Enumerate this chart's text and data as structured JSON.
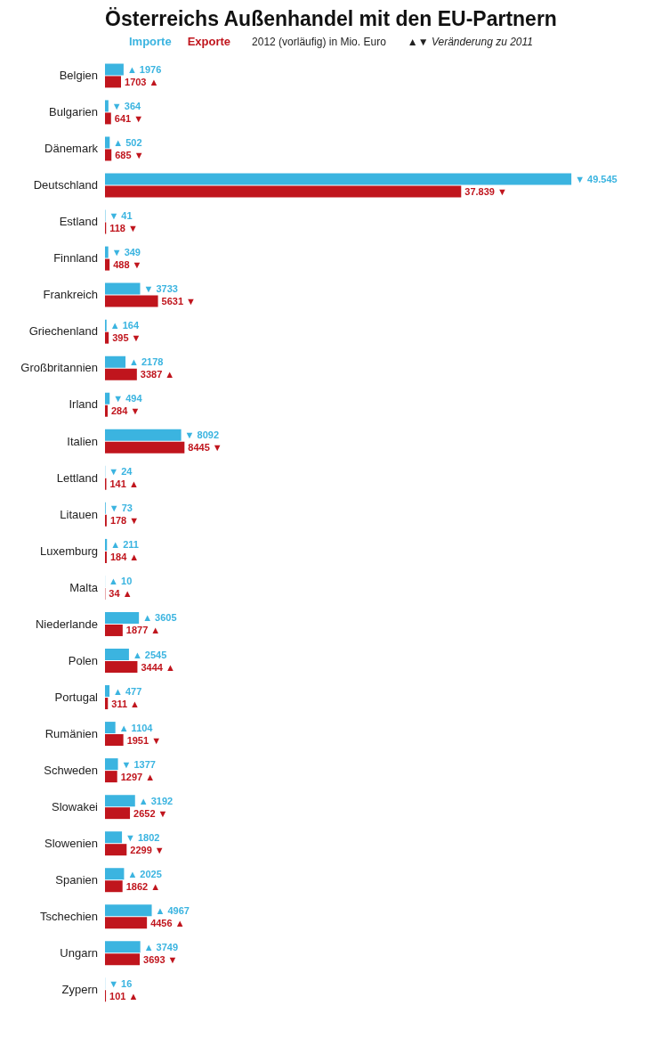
{
  "chart_data": {
    "type": "bar",
    "orientation": "horizontal",
    "title": "Österreichs Außenhandel mit den EU-Partnern",
    "subtitle": "2012 (vorläufig) in Mio. Euro",
    "annotations": [
      "▲▼ Veränderung zu 2011"
    ],
    "legend": "top",
    "categories": [
      "Belgien",
      "Bulgarien",
      "Dänemark",
      "Deutschland",
      "Estland",
      "Finnland",
      "Frankreich",
      "Griechenland",
      "Großbritannien",
      "Irland",
      "Italien",
      "Lettland",
      "Litauen",
      "Luxemburg",
      "Malta",
      "Niederlande",
      "Polen",
      "Portugal",
      "Rumänien",
      "Schweden",
      "Slowakei",
      "Slowenien",
      "Spanien",
      "Tschechien",
      "Ungarn",
      "Zypern"
    ],
    "series": [
      {
        "name": "Importe",
        "color": "#3bb4e0",
        "values": [
          1976,
          364,
          502,
          49545,
          41,
          349,
          3733,
          164,
          2178,
          494,
          8092,
          24,
          73,
          211,
          10,
          3605,
          2545,
          477,
          1104,
          1377,
          3192,
          1802,
          2025,
          4967,
          3749,
          16
        ],
        "value_labels": [
          "▲ 1976",
          "▼ 364",
          "▲ 502",
          "▼ 49.545",
          "▼ 41",
          "▼ 349",
          "▼ 3733",
          "▲ 164",
          "▲ 2178",
          "▼ 494",
          "▼ 8092",
          "▼ 24",
          "▼ 73",
          "▲ 211",
          "▲ 10",
          "▲ 3605",
          "▲ 2545",
          "▲ 477",
          "▲ 1104",
          "▼ 1377",
          "▲ 3192",
          "▼ 1802",
          "▲ 2025",
          "▲ 4967",
          "▲ 3749",
          "▼ 16"
        ]
      },
      {
        "name": "Exporte",
        "color": "#c0151d",
        "values": [
          1703,
          641,
          685,
          37839,
          118,
          488,
          5631,
          395,
          3387,
          284,
          8445,
          141,
          178,
          184,
          34,
          1877,
          3444,
          311,
          1951,
          1297,
          2652,
          2299,
          1862,
          4456,
          3693,
          101
        ],
        "value_labels": [
          "1703 ▲",
          "641 ▼",
          "685 ▼",
          "37.839 ▼",
          "118 ▼",
          "488 ▼",
          "5631 ▼",
          "395 ▼",
          "3387 ▲",
          "284 ▼",
          "8445 ▼",
          "141 ▲",
          "178 ▼",
          "184 ▲",
          "34 ▲",
          "1877 ▲",
          "3444 ▲",
          "311 ▲",
          "1951 ▼",
          "1297 ▲",
          "2652 ▼",
          "2299 ▼",
          "1862 ▲",
          "4456 ▲",
          "3693 ▼",
          "101 ▲"
        ]
      }
    ]
  }
}
